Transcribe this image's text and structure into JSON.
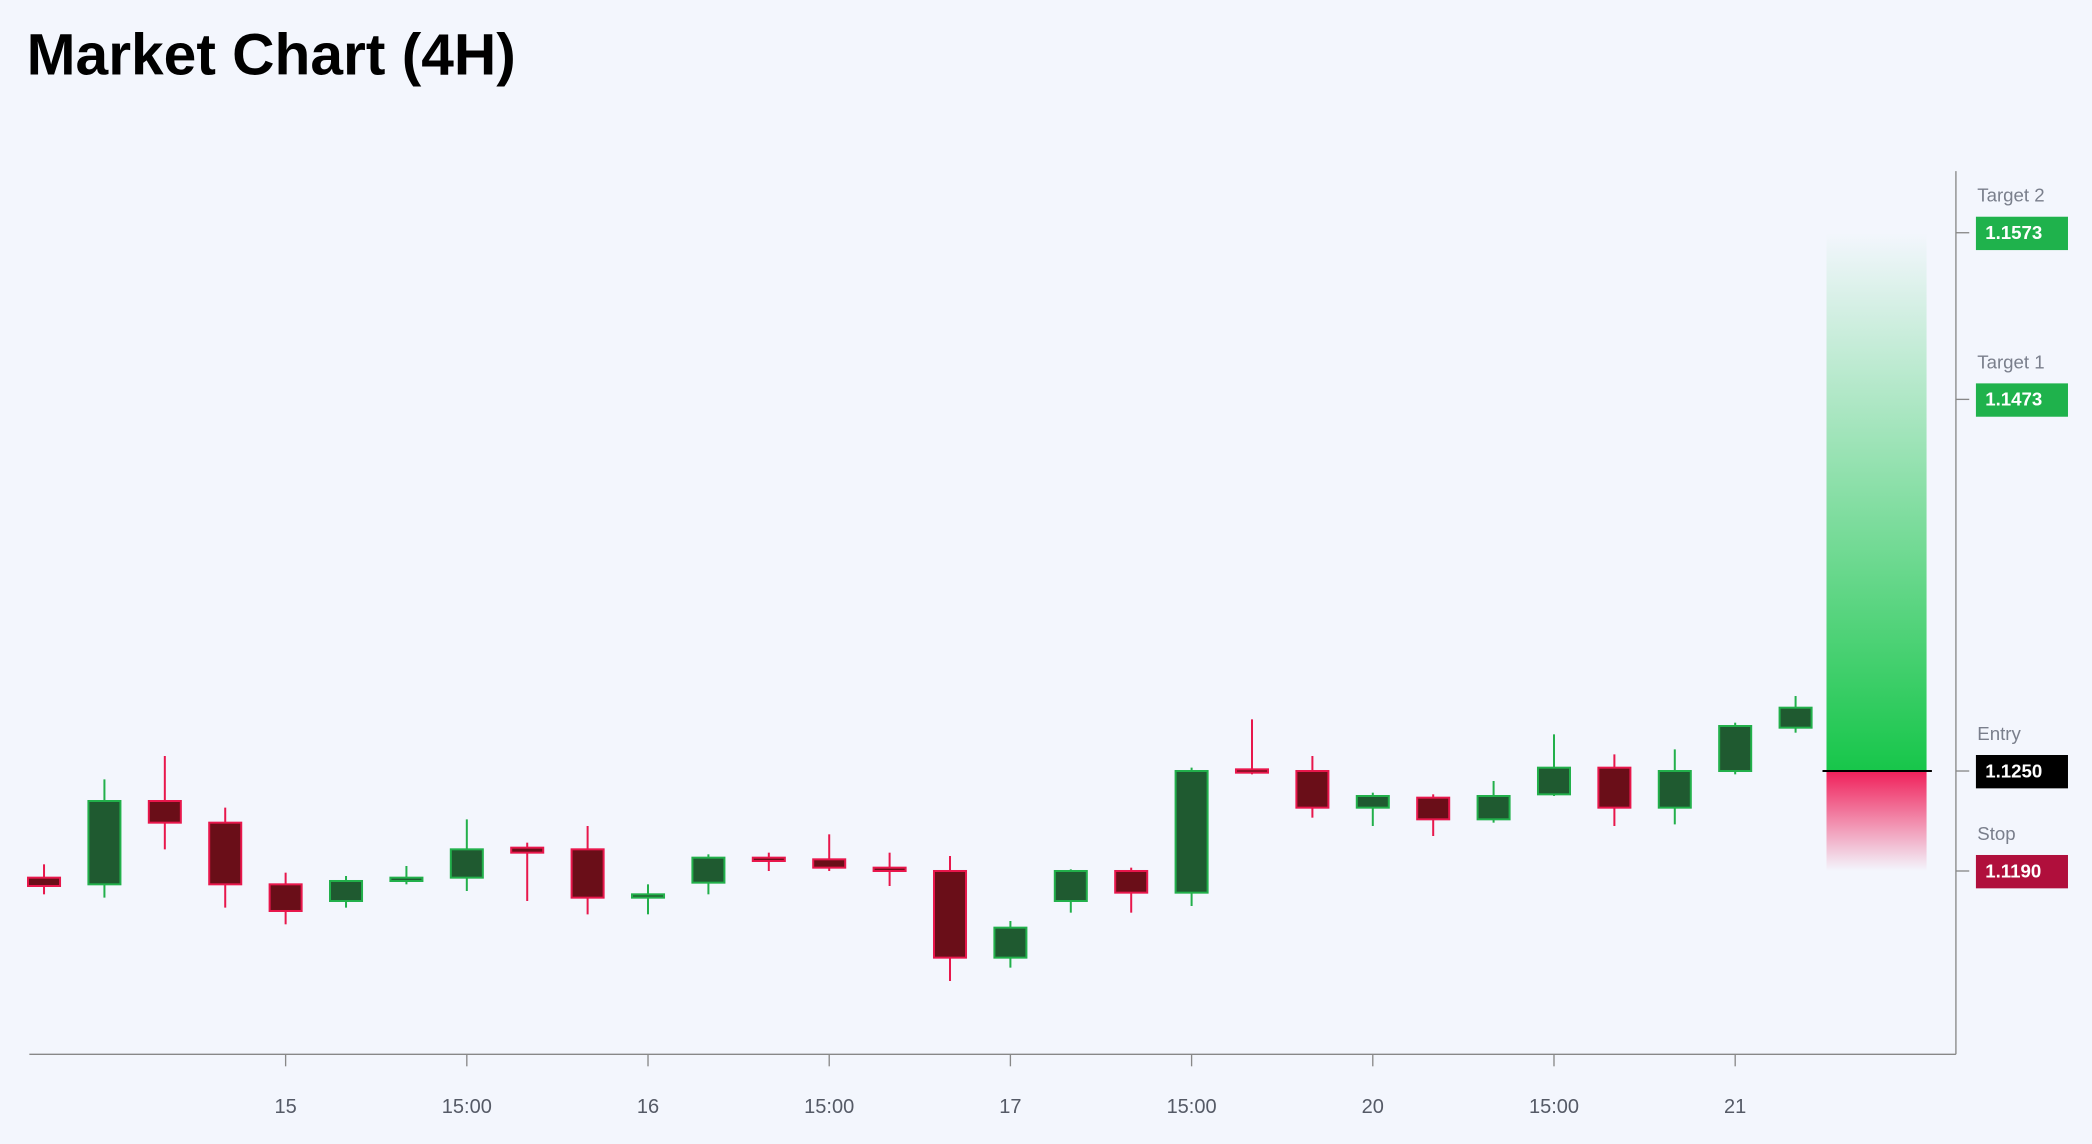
{
  "chart_data": {
    "type": "candlestick",
    "title": "Market Chart (4H)",
    "categories": [
      null,
      null,
      null,
      null,
      "15",
      null,
      null,
      "15:00",
      null,
      null,
      "16",
      null,
      null,
      "15:00",
      null,
      null,
      "17",
      null,
      null,
      "15:00",
      null,
      null,
      "20",
      null,
      null,
      "15:00",
      null,
      null,
      "21",
      null
    ],
    "open": [
      1.1186,
      1.1182,
      1.1232,
      1.1219,
      1.1182,
      1.1172,
      1.1184,
      1.1186,
      1.1204,
      1.1203,
      1.1174,
      1.1183,
      1.1198,
      1.1197,
      1.1192,
      1.119,
      1.1138,
      1.1172,
      1.119,
      1.1177,
      1.1251,
      1.125,
      1.1228,
      1.1234,
      1.1221,
      1.1236,
      1.1252,
      1.1228,
      1.125,
      1.1276
    ],
    "high": [
      1.1194,
      1.1245,
      1.1259,
      1.1228,
      1.1189,
      1.1187,
      1.1193,
      1.1221,
      1.1207,
      1.1217,
      1.1182,
      1.12,
      1.1201,
      1.1212,
      1.1201,
      1.1199,
      1.116,
      1.1191,
      1.1192,
      1.1252,
      1.1281,
      1.1259,
      1.1237,
      1.1236,
      1.1244,
      1.1272,
      1.126,
      1.1263,
      1.1279,
      1.1295
    ],
    "low": [
      1.1176,
      1.1174,
      1.1203,
      1.1168,
      1.1158,
      1.1168,
      1.1182,
      1.1178,
      1.1172,
      1.1164,
      1.1164,
      1.1176,
      1.119,
      1.119,
      1.1181,
      1.1124,
      1.1132,
      1.1165,
      1.1165,
      1.1169,
      1.1248,
      1.1222,
      1.1217,
      1.1211,
      1.1219,
      1.1235,
      1.1217,
      1.1218,
      1.1248,
      1.1273
    ],
    "close": [
      1.1181,
      1.1232,
      1.1219,
      1.1182,
      1.1166,
      1.1184,
      1.1186,
      1.1203,
      1.1201,
      1.1174,
      1.1176,
      1.1198,
      1.1196,
      1.1192,
      1.119,
      1.1138,
      1.1156,
      1.119,
      1.1177,
      1.125,
      1.1249,
      1.1228,
      1.1235,
      1.1221,
      1.1235,
      1.1252,
      1.1228,
      1.125,
      1.1277,
      1.1288
    ],
    "up_color": "#22b04b",
    "up_fill": "#1f5a30",
    "down_color": "#e8174c",
    "down_fill": "#6a0e18",
    "ylim": [
      1.108,
      1.161
    ],
    "levels": [
      {
        "name": "Target 2",
        "price": {
          "value": 1.1573,
          "label": "1.1573"
        },
        "color": "#1fb24c"
      },
      {
        "name": "Target 1",
        "price": {
          "value": 1.1473,
          "label": "1.1473"
        },
        "color": "#1fb24c"
      },
      {
        "name": "Entry",
        "price": {
          "value": 1.125,
          "label": "1.1250"
        },
        "color": "#000000"
      },
      {
        "name": "Stop",
        "price": {
          "value": 1.119,
          "label": "1.1190"
        },
        "color": "#b00f3c"
      }
    ]
  }
}
